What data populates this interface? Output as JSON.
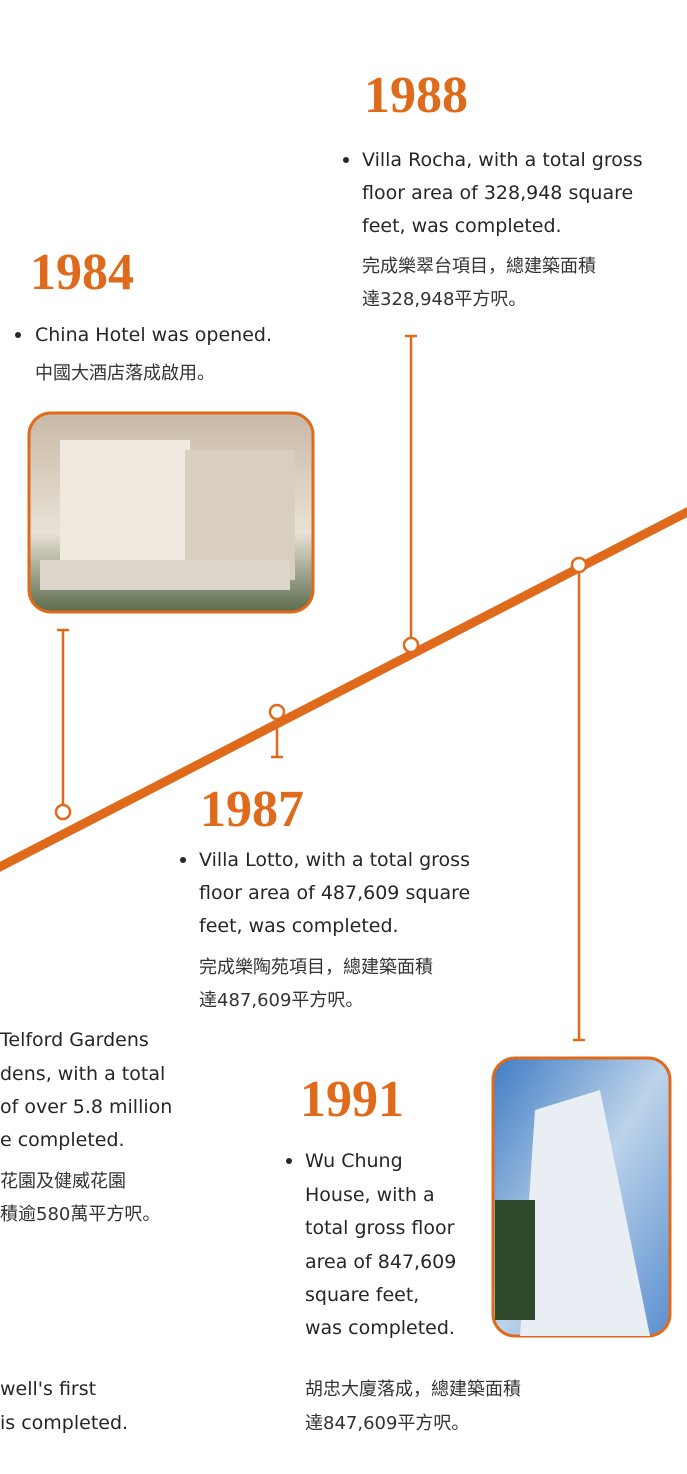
{
  "entries": [
    {
      "year": "1988",
      "text": [
        "Villa Rocha, with a total gross",
        "floor area of 328,948 square",
        "feet, was completed."
      ],
      "chinese": [
        "完成樂翠台項目，總建築面積",
        "達328,948平方呎。"
      ]
    },
    {
      "year": "1984",
      "text": [
        "China Hotel was opened."
      ],
      "chinese": [
        "中國大酒店落成啟用。"
      ]
    },
    {
      "year": "1987",
      "text": [
        "Villa Lotto, with a total gross",
        "floor area of 487,609 square",
        "feet, was completed."
      ],
      "chinese": [
        "完成樂陶苑項目，總建築面積",
        "達487,609平方呎。"
      ]
    },
    {
      "text": [
        "Telford Gardens",
        "dens, with a total",
        "of over 5.8 million",
        "e completed."
      ],
      "chinese": [
        "花園及健威花園",
        "積逾580萬平方呎。"
      ]
    },
    {
      "year": "1991",
      "text": [
        "Wu Chung",
        "House, with a",
        "total gross floor",
        "area of 847,609",
        "square feet,",
        "was completed."
      ],
      "chinese": [
        "胡忠大廈落成，總建築面積",
        "達847,609平方呎。"
      ]
    },
    {
      "text": [
        "well's first",
        "is completed."
      ]
    }
  ]
}
